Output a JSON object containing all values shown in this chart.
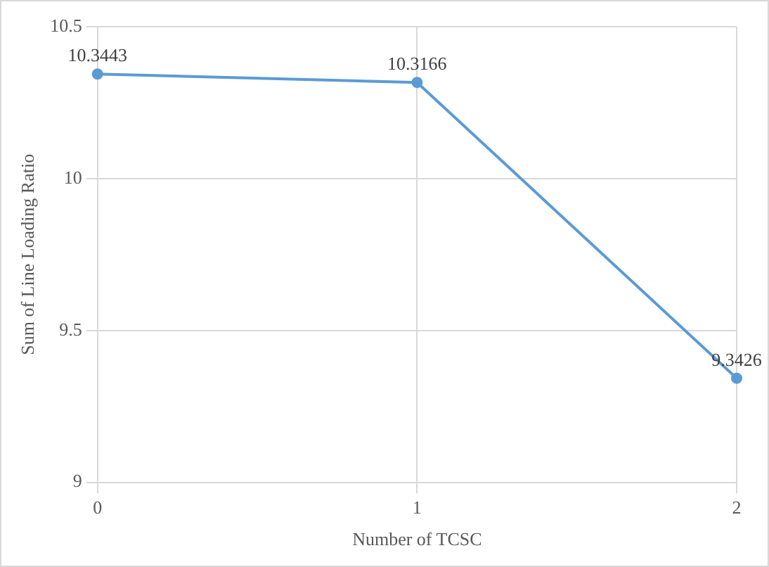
{
  "chart_data": {
    "type": "line",
    "xlabel": "Number of TCSC",
    "ylabel": "Sum of Line Loading Ratio",
    "categories": [
      "0",
      "1",
      "2"
    ],
    "series": [
      {
        "color": "#5b9bd5",
        "values": [
          10.3443,
          10.3166,
          9.3426
        ]
      }
    ],
    "ylim": [
      9,
      10.5
    ],
    "yticks": [
      9,
      9.5,
      10,
      10.5
    ],
    "grid": true,
    "marker": "circle",
    "data_labels": true,
    "legend": false
  }
}
